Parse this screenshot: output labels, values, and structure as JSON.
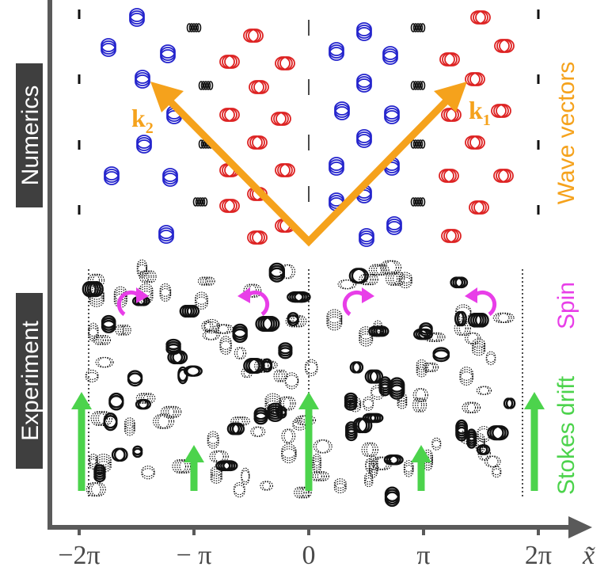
{
  "labels": {
    "numerics": "Numerics",
    "experiment": "Experiment"
  },
  "legend": {
    "wave_vectors": "Wave vectors",
    "spin": "Spin",
    "stokes_drift": "Stokes drift"
  },
  "vectors": {
    "k1": "k",
    "k1_sub": "1",
    "k2": "k",
    "k2_sub": "2"
  },
  "axis": {
    "x_label": "x̃",
    "ticks": [
      "−2π",
      "− π",
      "0",
      "π",
      "2π"
    ]
  },
  "colors": {
    "axis": "#5a5a5a",
    "wave_vectors": "#f5a21c",
    "spin": "#e83ee8",
    "stokes": "#4cd34c",
    "blue_orbit": "#2222cc",
    "red_orbit": "#dd2222",
    "black_orbit": "#111111"
  },
  "icons": {
    "spin_arrow": "curved-arrow-icon",
    "stokes_arrow": "up-arrow-icon"
  }
}
